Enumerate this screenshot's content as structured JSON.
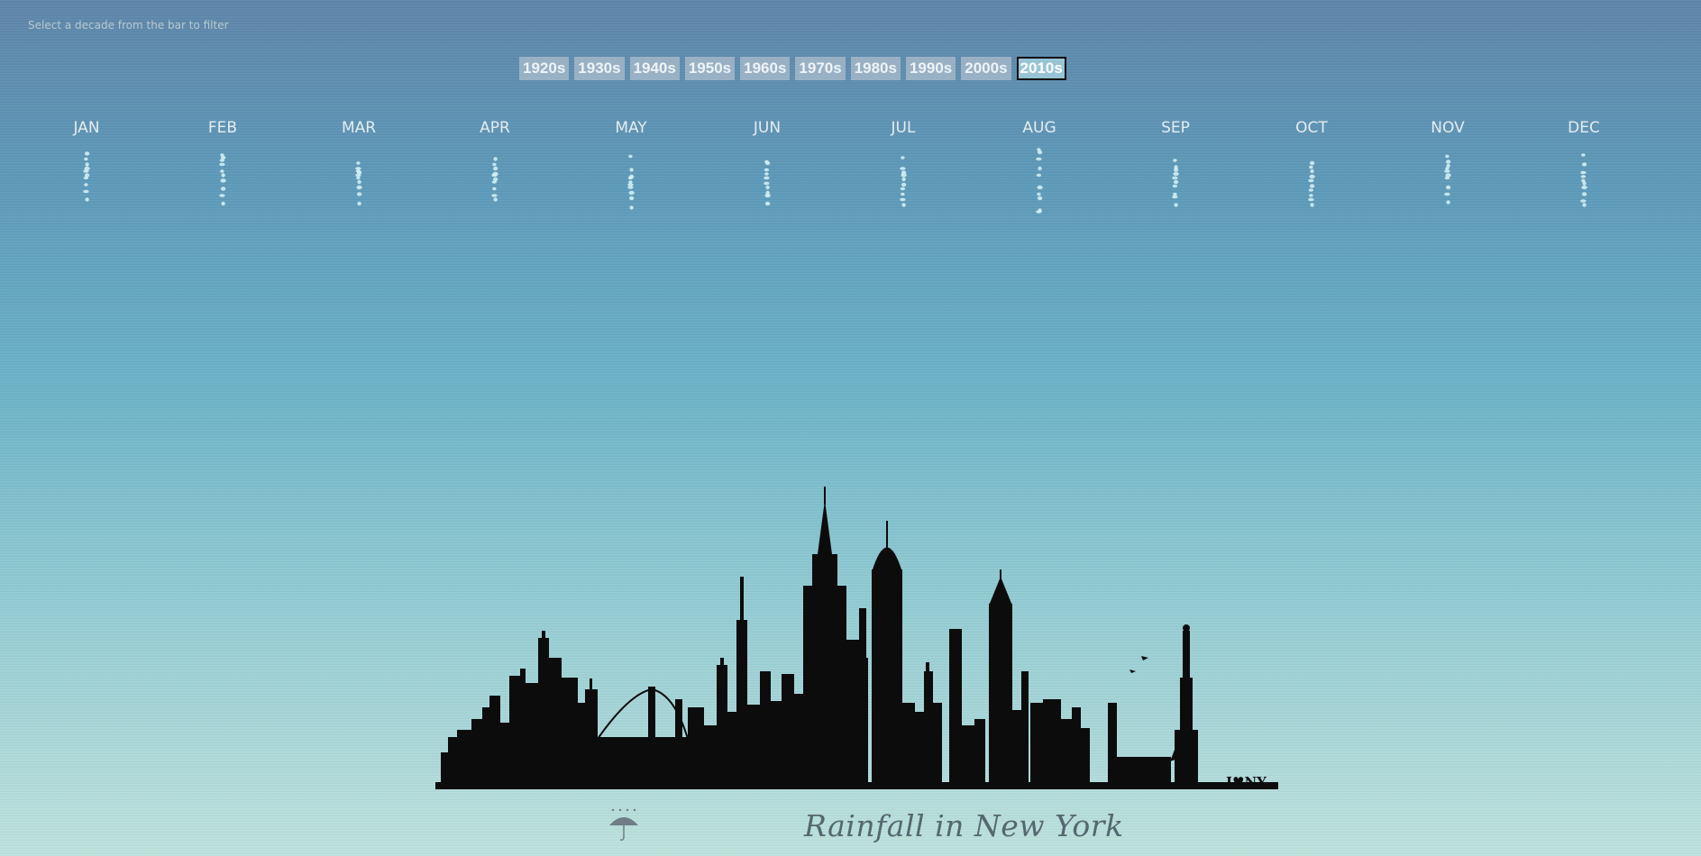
{
  "hint": "Select a decade from the bar to filter",
  "decades": [
    {
      "label": "1920s",
      "active": false
    },
    {
      "label": "1930s",
      "active": false
    },
    {
      "label": "1940s",
      "active": false
    },
    {
      "label": "1950s",
      "active": false
    },
    {
      "label": "1960s",
      "active": false
    },
    {
      "label": "1970s",
      "active": false
    },
    {
      "label": "1980s",
      "active": false
    },
    {
      "label": "1990s",
      "active": false
    },
    {
      "label": "2000s",
      "active": false
    },
    {
      "label": "2010s",
      "active": true
    }
  ],
  "skyline_badge": "I♥NY",
  "title": "Rainfall in New York",
  "chart_data": {
    "type": "scatter",
    "categories": [
      "JAN",
      "FEB",
      "MAR",
      "APR",
      "MAY",
      "JUN",
      "JUL",
      "AUG",
      "SEP",
      "OCT",
      "NOV",
      "DEC"
    ],
    "series": [
      {
        "values": [
          3.2,
          2.9,
          3.5,
          3.6,
          3.0,
          3.4,
          3.1,
          2.5,
          3.3,
          3.8,
          3.0,
          2.9
        ]
      },
      {
        "values": [
          2.8,
          3.1,
          4.2,
          3.9,
          4.5,
          3.5,
          4.2,
          2.7,
          4.0,
          3.5,
          3.4,
          3.6
        ]
      },
      {
        "values": [
          4.1,
          3.6,
          3.9,
          4.4,
          5.1,
          4.6,
          3.9,
          3.2,
          4.6,
          4.8,
          4.1,
          4.2
        ]
      },
      {
        "values": [
          3.6,
          4.4,
          4.9,
          3.2,
          4.0,
          5.3,
          4.7,
          3.9,
          3.8,
          4.1,
          3.7,
          5.0
        ]
      },
      {
        "values": [
          4.6,
          3.3,
          4.1,
          4.9,
          4.6,
          4.0,
          5.4,
          4.4,
          5.2,
          5.5,
          4.6,
          4.5
        ]
      },
      {
        "values": [
          3.9,
          4.8,
          5.3,
          4.3,
          5.7,
          5.9,
          4.4,
          5.3,
          4.3,
          4.5,
          4.4,
          5.3
        ]
      },
      {
        "values": [
          5.1,
          4.1,
          4.6,
          5.4,
          4.9,
          4.3,
          5.8,
          5.8,
          5.8,
          5.9,
          3.9,
          4.8
        ]
      },
      {
        "values": [
          4.4,
          5.4,
          5.8,
          4.7,
          6.1,
          6.5,
          5.1,
          6.1,
          4.9,
          5.2,
          5.3,
          5.8
        ]
      },
      {
        "values": [
          5.6,
          5.9,
          4.4,
          5.9,
          5.3,
          5.0,
          6.2,
          7.1,
          6.0,
          6.2,
          5.8,
          6.3
        ]
      },
      {
        "values": [
          6.2,
          6.5,
          6.5,
          6.2,
          6.8,
          5.7,
          6.6,
          7.0,
          6.6,
          6.6,
          6.4,
          6.6
        ]
      }
    ]
  }
}
